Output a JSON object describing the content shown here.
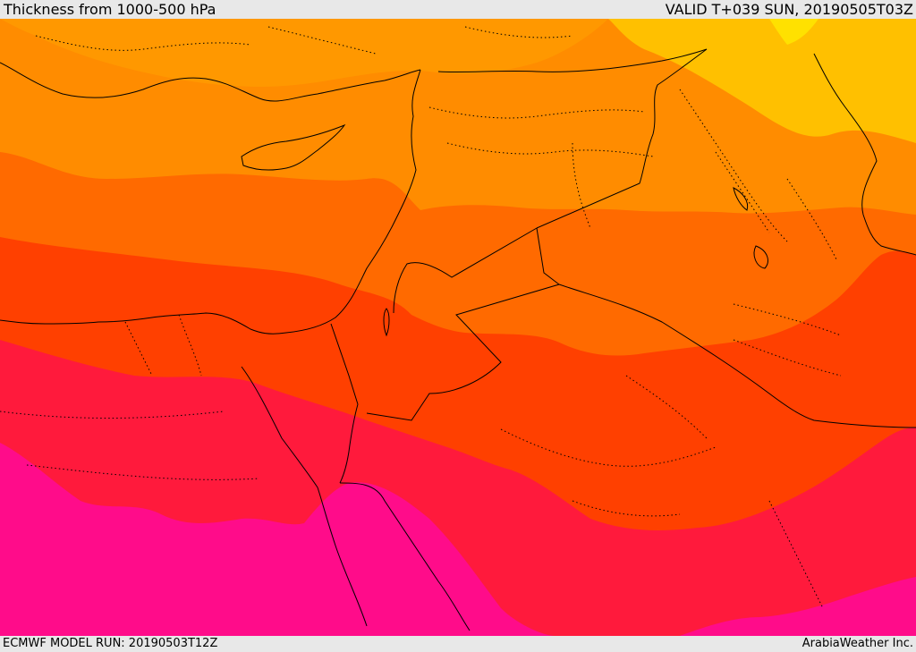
{
  "header": {
    "title": "Thickness from 1000-500 hPa",
    "valid": "VALID T+039 SUN, 20190505T03Z"
  },
  "footer": {
    "model_run": "ECMWF MODEL RUN: 20190503T12Z",
    "provider": "ArabiaWeather Inc."
  },
  "map": {
    "region": "Eastern Mediterranean / Levant / Egypt",
    "colors": {
      "yellow": "#ffe100",
      "yellow_orange": "#ffc000",
      "light_orange": "#ff8c00",
      "orange": "#ff6a00",
      "orange_red": "#ff4000",
      "red": "#ff1a3c",
      "magenta": "#ff0c8a",
      "coastline": "#000000",
      "borders": "#000000"
    }
  }
}
